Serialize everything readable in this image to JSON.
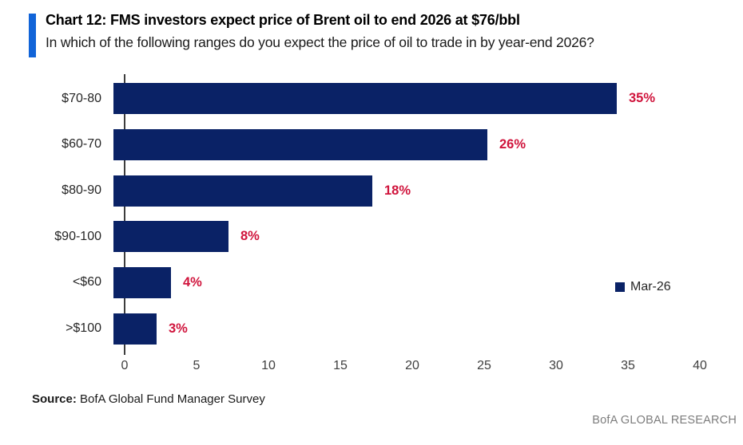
{
  "header": {
    "title": "Chart 12: FMS investors expect price of Brent oil to end 2026 at $76/bbl",
    "subtitle": "In which of the following ranges do you expect the price of oil to trade in by year-end 2026?"
  },
  "chart_data": {
    "type": "bar",
    "orientation": "horizontal",
    "title": "Chart 12: FMS investors expect price of Brent oil to end 2026 at $76/bbl",
    "categories": [
      "$70-80",
      "$60-70",
      "$80-90",
      "$90-100",
      "<$60",
      ">$100"
    ],
    "series": [
      {
        "name": "Mar-26",
        "values": [
          35,
          26,
          18,
          8,
          4,
          3
        ]
      }
    ],
    "value_labels": [
      "35%",
      "26%",
      "18%",
      "8%",
      "4%",
      "3%"
    ],
    "xlabel": "",
    "ylabel": "",
    "xlim": [
      0,
      40
    ],
    "xticks": [
      0,
      5,
      10,
      15,
      20,
      25,
      30,
      35,
      40
    ],
    "grid": false,
    "legend_position": "right-middle",
    "bar_color": "#0A2266",
    "value_label_color": "#D0143C"
  },
  "legend": {
    "label": "Mar-26"
  },
  "footer": {
    "source_label": "Source:",
    "source_text": " BofA Global Fund Manager Survey",
    "brand": "BofA GLOBAL RESEARCH"
  },
  "colors": {
    "accent_bar": "#1164D8",
    "bar_navy": "#0A2266",
    "label_red": "#D0143C",
    "axis_gray": "#3d3d3d"
  }
}
